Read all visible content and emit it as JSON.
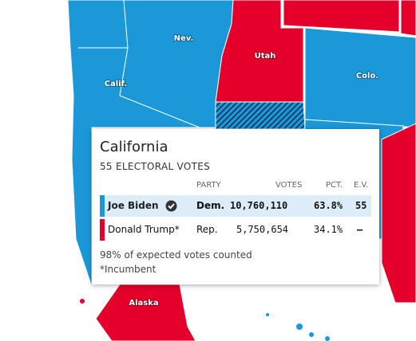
{
  "map": {
    "labels": [
      "Nev.",
      "Utah",
      "Calif.",
      "Colo.",
      "Alaska"
    ]
  },
  "tooltip": {
    "title": "California",
    "subtitle": "55 ELECTORAL VOTES",
    "columns": [
      "PARTY",
      "VOTES",
      "PCT.",
      "E.V."
    ],
    "rows": [
      [
        "Joe Biden",
        "Dem.",
        "10,760,110",
        "63.8%",
        "55"
      ],
      [
        "Donald Trump*",
        "Rep.",
        "5,750,654",
        "34.1%",
        "–"
      ]
    ],
    "notes": [
      "98% of expected votes counted",
      "*Incumbent"
    ]
  }
}
